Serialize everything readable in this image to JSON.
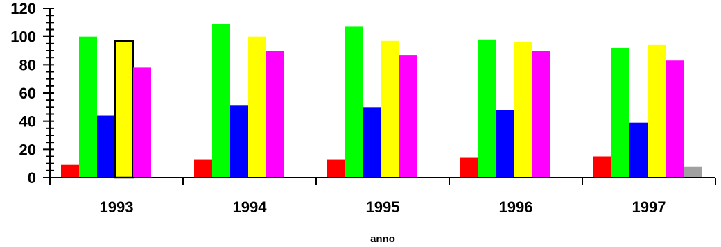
{
  "chart_data": {
    "type": "bar",
    "title": "",
    "xlabel": "anno",
    "ylabel": "",
    "categories": [
      "1993",
      "1994",
      "1995",
      "1996",
      "1997"
    ],
    "ylim": [
      0,
      120
    ],
    "y_ticks": [
      0,
      20,
      40,
      60,
      80,
      100,
      120
    ],
    "y_tick_labels": [
      "0",
      "20",
      "40",
      "60",
      "80",
      "100",
      "120"
    ],
    "grid": false,
    "legend": "none",
    "series": [
      {
        "color": "#ff0000",
        "values": [
          9,
          13,
          13,
          14,
          15
        ]
      },
      {
        "color": "#00ff00",
        "values": [
          100,
          109,
          107,
          98,
          92
        ]
      },
      {
        "color": "#0000ff",
        "values": [
          44,
          51,
          50,
          48,
          39
        ]
      },
      {
        "color": "#ffff00",
        "values": [
          97,
          100,
          97,
          96,
          94
        ]
      },
      {
        "color": "#ff00ff",
        "values": [
          78,
          90,
          87,
          90,
          83
        ]
      },
      {
        "color": "#a0a0a0",
        "values": [
          null,
          null,
          null,
          null,
          8
        ]
      }
    ],
    "highlight": {
      "series_index": 3,
      "category_index": 0,
      "outline": "#000000"
    }
  }
}
